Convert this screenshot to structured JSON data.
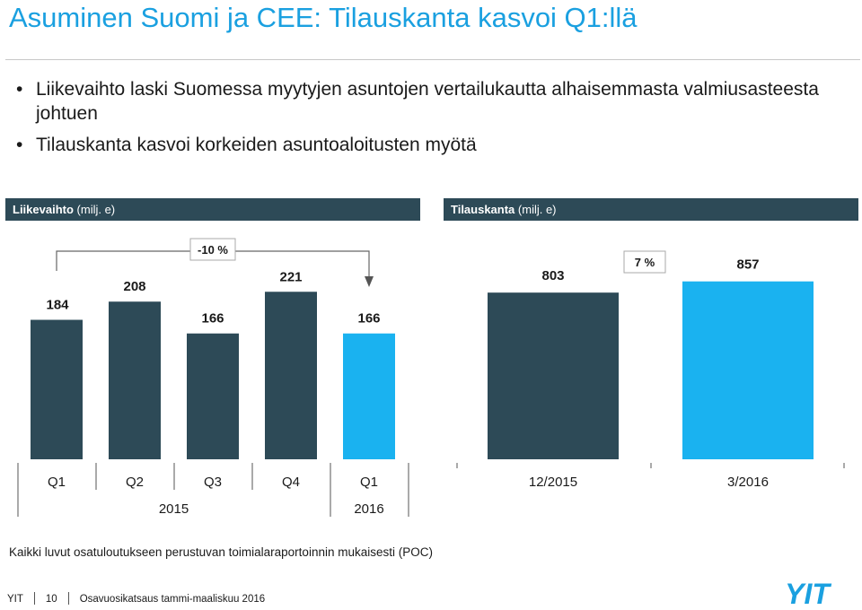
{
  "title": "Asuminen Suomi ja CEE: Tilauskanta kasvoi Q1:llä",
  "bullets": [
    "Liikevaihto laski Suomessa myytyjen asuntojen vertailukautta alhaisemmasta valmiusasteesta johtuen",
    "Tilauskanta kasvoi korkeiden asuntoaloitusten myötä"
  ],
  "left_header": {
    "bold": "Liikevaihto",
    "unit": " (milj. e)"
  },
  "right_header": {
    "bold": "Tilauskanta",
    "unit": " (milj. e)"
  },
  "colors": {
    "dark_bar": "#2d4a57",
    "highlight_bar": "#1ab2f0",
    "title": "#1aa0e0"
  },
  "chart_data": [
    {
      "type": "bar",
      "title": "Liikevaihto (milj. e)",
      "categories": [
        "Q1",
        "Q2",
        "Q3",
        "Q4",
        "Q1"
      ],
      "values": [
        184,
        208,
        166,
        221,
        166
      ],
      "highlight_index": 4,
      "groups": [
        {
          "label": "2015",
          "span": [
            0,
            3
          ]
        },
        {
          "label": "2016",
          "span": [
            4,
            4
          ]
        }
      ],
      "change_annotation": {
        "label": "-10 %",
        "from_index": 0,
        "to_index": 4
      }
    },
    {
      "type": "bar",
      "title": "Tilauskanta (milj. e)",
      "categories": [
        "12/2015",
        "3/2016"
      ],
      "values": [
        803,
        857
      ],
      "highlight_index": 1,
      "change_annotation": {
        "label": "7 %"
      }
    }
  ],
  "footnote": "Kaikki luvut osatuloutukseen perustuvan toimialaraportoinnin mukaisesti (POC)",
  "footer": {
    "company": "YIT",
    "page": "10",
    "doc": "Osavuosikatsaus tammi-maaliskuu 2016"
  },
  "logo_text": "YIT"
}
